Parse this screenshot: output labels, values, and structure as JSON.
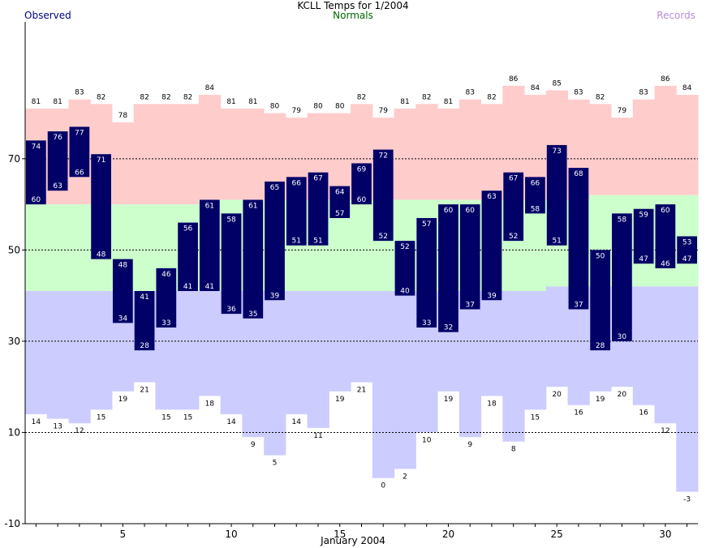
{
  "title": "KCLL Temps for 1/2004",
  "legend": {
    "observed": "Observed",
    "normals": "Normals",
    "records": "Records"
  },
  "colors": {
    "observed": "#000066",
    "observed_label": "#ffffff",
    "normals": "#ccffcc",
    "record_high_band": "#ffcccc",
    "record_low_band": "#ccccff",
    "gridline": "#000000",
    "legend_observed": "#000080",
    "legend_normals": "#006400",
    "legend_records": "#b48cdc"
  },
  "chart_data": {
    "type": "bar",
    "title": "KCLL Temps for 1/2004",
    "xlabel": "January 2004",
    "ylabel": "",
    "x": [
      1,
      2,
      3,
      4,
      5,
      6,
      7,
      8,
      9,
      10,
      11,
      12,
      13,
      14,
      15,
      16,
      17,
      18,
      19,
      20,
      21,
      22,
      23,
      24,
      25,
      26,
      27,
      28,
      29,
      30,
      31
    ],
    "xlim": [
      0.5,
      31.5
    ],
    "ylim": [
      -10,
      100
    ],
    "x_ticks": [
      5,
      10,
      15,
      20,
      25,
      30
    ],
    "y_ticks": [
      -10,
      10,
      30,
      50,
      70
    ],
    "gridlines_dashed": [
      10,
      30,
      50,
      70
    ],
    "series": [
      {
        "name": "Observed",
        "kind": "range",
        "high": [
          74,
          76,
          77,
          71,
          48,
          41,
          46,
          56,
          61,
          58,
          61,
          65,
          66,
          67,
          64,
          69,
          72,
          52,
          57,
          60,
          60,
          63,
          67,
          66,
          73,
          68,
          50,
          58,
          59,
          60,
          53
        ],
        "low": [
          60,
          63,
          66,
          48,
          34,
          28,
          33,
          41,
          41,
          36,
          35,
          39,
          51,
          51,
          57,
          60,
          52,
          40,
          33,
          32,
          37,
          39,
          52,
          58,
          51,
          37,
          28,
          30,
          47,
          46,
          47
        ]
      },
      {
        "name": "Normals",
        "kind": "band",
        "high": [
          60,
          60,
          60,
          60,
          60,
          60,
          60,
          60,
          61,
          61,
          61,
          61,
          61,
          61,
          61,
          61,
          61,
          61,
          61,
          61,
          61,
          61,
          61,
          61,
          61,
          61,
          62,
          62,
          62,
          62,
          62
        ],
        "low": [
          41,
          41,
          41,
          41,
          41,
          41,
          41,
          41,
          41,
          41,
          41,
          41,
          41,
          41,
          41,
          41,
          41,
          41,
          41,
          41,
          41,
          41,
          41,
          41,
          42,
          42,
          42,
          42,
          42,
          42,
          42
        ]
      },
      {
        "name": "Records",
        "kind": "extremes",
        "high": [
          81,
          81,
          83,
          82,
          78,
          82,
          82,
          82,
          84,
          81,
          81,
          80,
          79,
          80,
          80,
          82,
          79,
          81,
          82,
          81,
          83,
          82,
          86,
          84,
          85,
          83,
          82,
          79,
          83,
          86,
          84
        ],
        "low": [
          14,
          13,
          12,
          15,
          19,
          21,
          15,
          15,
          18,
          14,
          9,
          5,
          14,
          11,
          19,
          21,
          0,
          2,
          10,
          19,
          9,
          18,
          8,
          15,
          20,
          16,
          19,
          20,
          16,
          12,
          -3
        ]
      }
    ]
  }
}
